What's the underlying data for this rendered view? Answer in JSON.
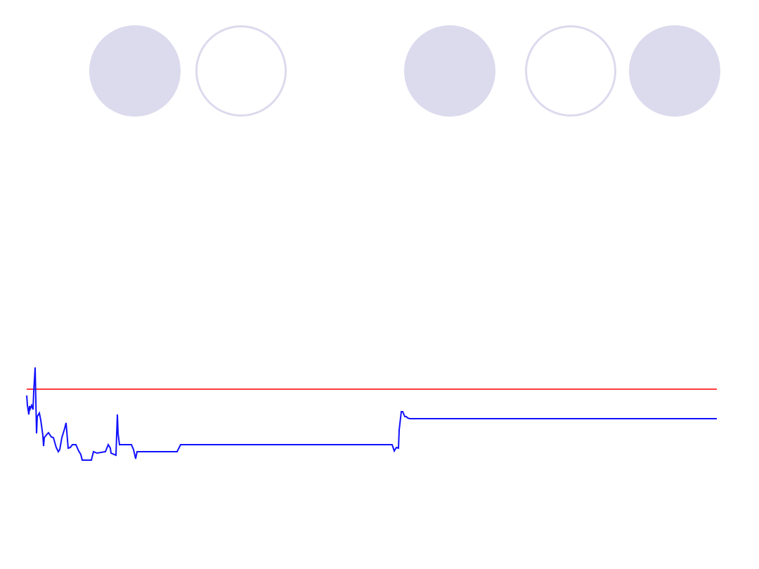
{
  "decor": {
    "circle_color": "#dcdaed",
    "circles": [
      "filled",
      "outline",
      "filled",
      "outline",
      "filled"
    ]
  },
  "chart_data": {
    "type": "line",
    "title": "",
    "xlabel": "",
    "ylabel": "",
    "axes_visible": false,
    "grid": false,
    "xlim": [
      0,
      982
    ],
    "ylim": [
      0,
      140
    ],
    "series": [
      {
        "color": "#1010ff",
        "x": [
          0,
          1,
          3,
          4,
          5,
          7,
          9,
          10,
          12,
          13,
          14,
          15,
          18,
          20,
          23,
          24,
          25,
          29,
          31,
          35,
          38,
          42,
          45,
          47,
          50,
          54,
          56,
          59,
          62,
          65,
          70,
          74,
          77,
          79,
          92,
          95,
          100,
          112,
          116,
          119,
          120,
          127,
          129,
          130,
          132,
          149,
          152,
          155,
          157,
          214,
          219,
          520,
          523,
          526,
          529,
          530,
          533,
          535,
          538,
          540,
          542,
          545,
          982
        ],
        "y": [
          97,
          83,
          70,
          82,
          78,
          83,
          77,
          103,
          137,
          90,
          43,
          67,
          72,
          62,
          40,
          25,
          37,
          42,
          44,
          38,
          37,
          23,
          17,
          20,
          37,
          50,
          58,
          22,
          23,
          27,
          27,
          18,
          13,
          5,
          5,
          17,
          15,
          17,
          27,
          22,
          15,
          12,
          70,
          43,
          27,
          27,
          20,
          7,
          17,
          17,
          27,
          27,
          18,
          23,
          22,
          48,
          74,
          74,
          67,
          67,
          65,
          64,
          64
        ]
      },
      {
        "color": "#ff3b3b",
        "x": [
          0,
          982
        ],
        "y": [
          106,
          106
        ]
      }
    ]
  }
}
